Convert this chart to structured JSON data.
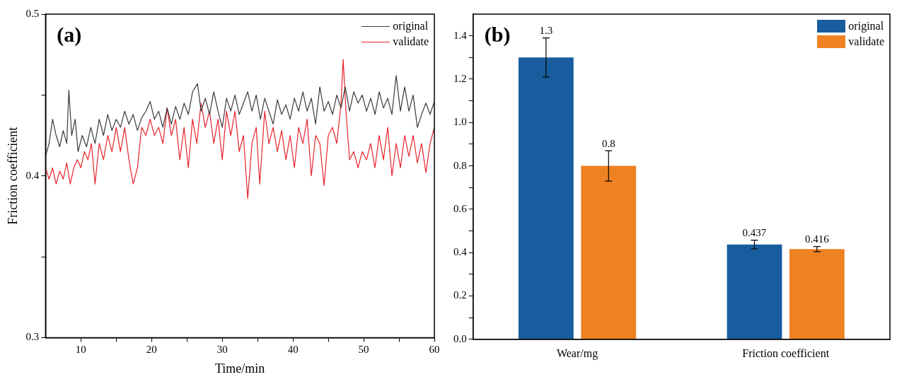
{
  "chart_data": [
    {
      "type": "line",
      "annotations": [
        "(a)"
      ],
      "xlabel": "Time/min",
      "ylabel": "Friction coefficient",
      "xlim": [
        5,
        60
      ],
      "xticks": [
        10,
        {
          "value": 15,
          "label": null
        },
        20,
        {
          "value": 25,
          "label": null
        },
        30,
        {
          "value": 35,
          "label": null
        },
        40,
        {
          "value": 45,
          "label": null
        },
        50,
        {
          "value": 55,
          "label": null
        },
        60
      ],
      "ylim": [
        0.3,
        0.5
      ],
      "yticks": [
        0.3,
        {
          "value": 0.35,
          "label": null
        },
        0.4,
        {
          "value": 0.45,
          "label": null
        },
        0.5
      ],
      "grid": false,
      "legend": "top right",
      "series": [
        {
          "name": "original",
          "color": "#3a3a3a",
          "x": [
            5,
            5.5,
            6,
            6.5,
            7,
            7.5,
            8,
            8.3,
            8.7,
            9.2,
            9.6,
            10.2,
            10.8,
            11.4,
            12,
            12.6,
            13.2,
            13.8,
            14.4,
            15,
            15.6,
            16.2,
            16.8,
            17.4,
            18,
            18.6,
            19.2,
            19.8,
            20.4,
            21,
            21.6,
            22.2,
            22.8,
            23.4,
            24,
            24.6,
            25.2,
            25.8,
            26.5,
            27,
            27.6,
            28.2,
            28.8,
            29.4,
            30,
            30.6,
            31.2,
            31.8,
            32.4,
            33,
            33.6,
            34.2,
            34.8,
            35.4,
            36,
            36.6,
            37.2,
            37.8,
            38.4,
            39,
            39.6,
            40.2,
            40.8,
            41.4,
            42,
            42.6,
            43.2,
            43.8,
            44.4,
            45,
            45.6,
            46.2,
            46.8,
            47.4,
            48,
            48.6,
            49.2,
            49.8,
            50.4,
            51,
            51.6,
            52.2,
            52.8,
            53.4,
            54,
            54.6,
            55.2,
            55.8,
            56.4,
            57,
            57.6,
            58.2,
            58.8,
            59.4,
            60
          ],
          "values": [
            0.412,
            0.42,
            0.435,
            0.425,
            0.418,
            0.428,
            0.42,
            0.453,
            0.425,
            0.435,
            0.415,
            0.425,
            0.418,
            0.43,
            0.42,
            0.435,
            0.425,
            0.438,
            0.428,
            0.435,
            0.43,
            0.44,
            0.432,
            0.438,
            0.428,
            0.436,
            0.44,
            0.446,
            0.435,
            0.44,
            0.43,
            0.442,
            0.432,
            0.443,
            0.435,
            0.445,
            0.438,
            0.452,
            0.457,
            0.44,
            0.448,
            0.438,
            0.452,
            0.44,
            0.43,
            0.448,
            0.44,
            0.45,
            0.438,
            0.445,
            0.452,
            0.44,
            0.45,
            0.435,
            0.448,
            0.44,
            0.432,
            0.447,
            0.438,
            0.444,
            0.435,
            0.448,
            0.44,
            0.452,
            0.44,
            0.448,
            0.432,
            0.455,
            0.44,
            0.446,
            0.438,
            0.45,
            0.442,
            0.455,
            0.44,
            0.452,
            0.445,
            0.45,
            0.44,
            0.448,
            0.438,
            0.452,
            0.442,
            0.448,
            0.438,
            0.462,
            0.44,
            0.455,
            0.44,
            0.45,
            0.43,
            0.438,
            0.445,
            0.438,
            0.446
          ]
        },
        {
          "name": "validate",
          "color": "#e8232a",
          "x": [
            5,
            5.5,
            6,
            6.5,
            7,
            7.5,
            8,
            8.5,
            9,
            9.5,
            10,
            10.5,
            11,
            11.5,
            12,
            12.6,
            13.2,
            13.8,
            14.4,
            15,
            15.6,
            16.2,
            16.8,
            17.4,
            18,
            18.6,
            19.2,
            19.8,
            20.4,
            21,
            21.6,
            22.2,
            22.8,
            23.4,
            24,
            24.6,
            25.2,
            25.8,
            26.4,
            27,
            27.6,
            28.2,
            28.8,
            29.4,
            30,
            30.6,
            31.2,
            31.8,
            32.4,
            33,
            33.6,
            34.2,
            34.8,
            35.3,
            36,
            36.6,
            37.2,
            37.8,
            38.4,
            39,
            39.6,
            40.2,
            40.8,
            41.4,
            42,
            42.6,
            43.2,
            43.8,
            44.4,
            45,
            45.6,
            46.2,
            46.8,
            47.1,
            47.5,
            48,
            48.6,
            49.2,
            49.8,
            50.4,
            51,
            51.6,
            52.2,
            52.8,
            53.4,
            54,
            54.6,
            55.2,
            55.8,
            56.4,
            57,
            57.6,
            58.2,
            58.8,
            59.4,
            60
          ],
          "values": [
            0.405,
            0.398,
            0.405,
            0.395,
            0.403,
            0.398,
            0.408,
            0.395,
            0.405,
            0.41,
            0.405,
            0.415,
            0.41,
            0.42,
            0.395,
            0.42,
            0.41,
            0.425,
            0.415,
            0.43,
            0.415,
            0.43,
            0.41,
            0.395,
            0.405,
            0.43,
            0.425,
            0.435,
            0.425,
            0.43,
            0.42,
            0.442,
            0.425,
            0.435,
            0.41,
            0.43,
            0.405,
            0.435,
            0.42,
            0.445,
            0.43,
            0.44,
            0.42,
            0.435,
            0.41,
            0.44,
            0.425,
            0.44,
            0.415,
            0.425,
            0.386,
            0.42,
            0.43,
            0.395,
            0.44,
            0.42,
            0.43,
            0.415,
            0.428,
            0.41,
            0.425,
            0.405,
            0.43,
            0.42,
            0.435,
            0.4,
            0.425,
            0.42,
            0.394,
            0.425,
            0.43,
            0.42,
            0.445,
            0.472,
            0.44,
            0.41,
            0.415,
            0.405,
            0.415,
            0.41,
            0.42,
            0.405,
            0.425,
            0.41,
            0.43,
            0.4,
            0.42,
            0.405,
            0.425,
            0.412,
            0.425,
            0.408,
            0.42,
            0.402,
            0.42,
            0.43
          ]
        }
      ]
    },
    {
      "type": "bar",
      "annotations": [
        "(b)"
      ],
      "categories": [
        "Wear/mg",
        "Friction coefficient"
      ],
      "ylim": [
        0,
        1.5
      ],
      "yticks": [
        {
          "value": 0,
          "label": "0.0"
        },
        {
          "value": 0.1,
          "label": null
        },
        0.2,
        {
          "value": 0.3,
          "label": null
        },
        0.4,
        {
          "value": 0.5,
          "label": null
        },
        0.6,
        {
          "value": 0.7,
          "label": null
        },
        0.8,
        {
          "value": 0.9,
          "label": null
        },
        {
          "value": 1,
          "label": "1.0"
        },
        {
          "value": 1.1,
          "label": null
        },
        1.2,
        {
          "value": 1.3,
          "label": null
        },
        1.4
      ],
      "grid": false,
      "legend": "top right",
      "data_labels": true,
      "series": [
        {
          "name": "original",
          "color": "#185d9e",
          "values": [
            1.3,
            0.437
          ],
          "errors": [
            0.09,
            0.02
          ]
        },
        {
          "name": "validate",
          "color": "#ee8222",
          "values": [
            0.8,
            0.416
          ],
          "errors": [
            0.07,
            0.012
          ]
        }
      ]
    }
  ]
}
